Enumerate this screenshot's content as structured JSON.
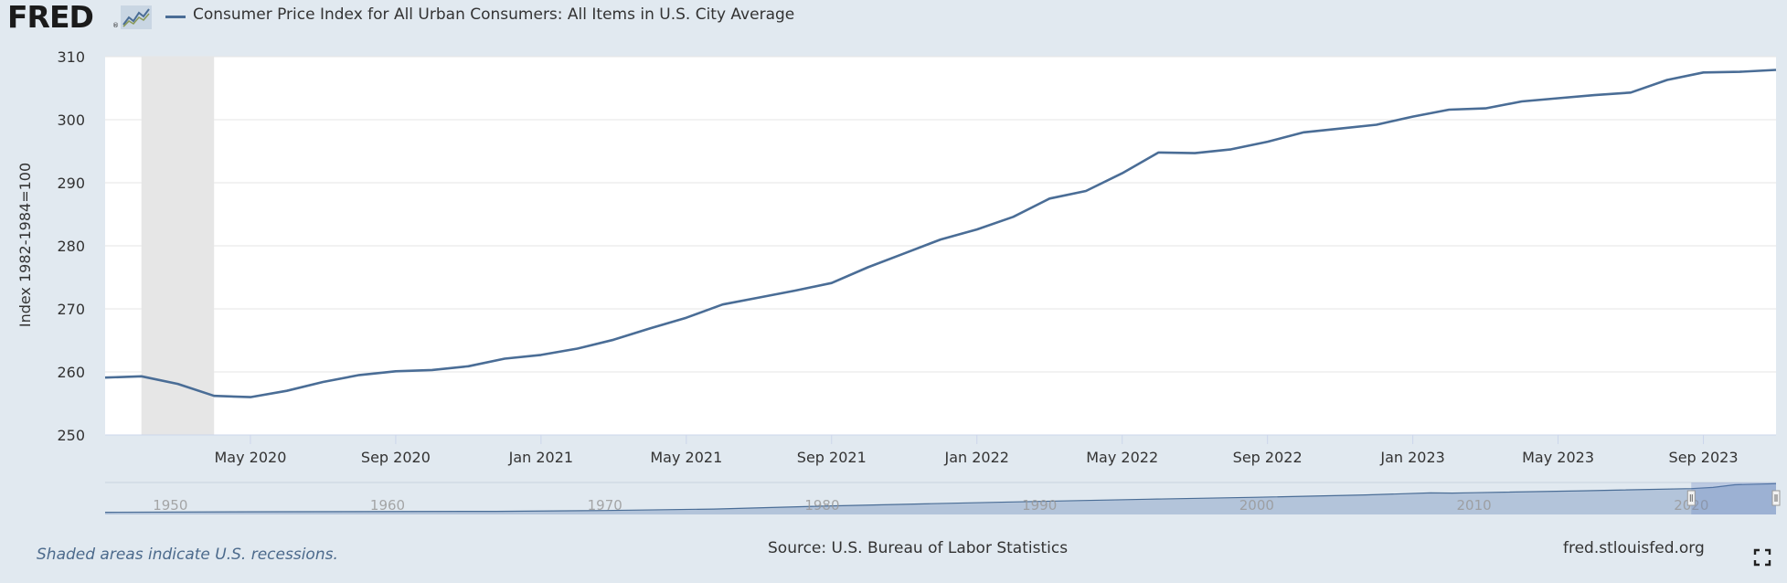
{
  "header": {
    "logo_text": "FRED",
    "logo_mark": "®",
    "logo_icon": "chart-line-icon",
    "series_title": "Consumer Price Index for All Urban Consumers: All Items in U.S. City Average"
  },
  "colors": {
    "series": "#4a6d96",
    "recession": "#e6e6e6",
    "plot_bg": "#ffffff",
    "page_bg": "#e1e9f0",
    "grid": "#e6e6e6",
    "navigator_fill": "#8ea6c8"
  },
  "chart_data": {
    "type": "line",
    "title": "Consumer Price Index for All Urban Consumers: All Items in U.S. City Average",
    "xlabel": "",
    "ylabel": "Index 1982-1984=100",
    "ylim": [
      250,
      310
    ],
    "yticks": [
      250,
      260,
      270,
      280,
      290,
      300,
      310
    ],
    "grid": true,
    "x_start": "Jan 2020",
    "x_end": "Nov 2023",
    "xticks": [
      {
        "index": 4,
        "label": "May 2020"
      },
      {
        "index": 8,
        "label": "Sep 2020"
      },
      {
        "index": 12,
        "label": "Jan 2021"
      },
      {
        "index": 16,
        "label": "May 2021"
      },
      {
        "index": 20,
        "label": "Sep 2021"
      },
      {
        "index": 24,
        "label": "Jan 2022"
      },
      {
        "index": 28,
        "label": "May 2022"
      },
      {
        "index": 32,
        "label": "Sep 2022"
      },
      {
        "index": 36,
        "label": "Jan 2023"
      },
      {
        "index": 40,
        "label": "May 2023"
      },
      {
        "index": 44,
        "label": "Sep 2023"
      }
    ],
    "recession": {
      "start_index": 1,
      "end_index": 3
    },
    "series": [
      {
        "name": "Consumer Price Index for All Urban Consumers: All Items in U.S. City Average",
        "values": [
          259.1,
          259.3,
          258.1,
          256.2,
          256.0,
          257.0,
          258.4,
          259.5,
          260.1,
          260.3,
          260.9,
          262.1,
          262.7,
          263.7,
          265.1,
          266.9,
          268.6,
          270.7,
          271.8,
          272.9,
          274.1,
          276.6,
          278.8,
          281.0,
          282.6,
          284.6,
          287.5,
          288.7,
          291.5,
          294.8,
          294.7,
          295.3,
          296.5,
          298.0,
          298.6,
          299.2,
          300.5,
          301.6,
          301.8,
          302.9,
          303.4,
          303.9,
          304.3,
          306.3,
          307.5,
          307.6,
          307.9
        ]
      }
    ],
    "navigator": {
      "labels": [
        "1950",
        "1960",
        "1970",
        "1980",
        "1990",
        "2000",
        "2010",
        "2020"
      ],
      "range_start": 1947,
      "range_end": 2023.9,
      "selected_start": 2020,
      "selected_end": 2023.9,
      "series_points": [
        [
          1947,
          22
        ],
        [
          1955,
          27
        ],
        [
          1965,
          31
        ],
        [
          1970,
          39
        ],
        [
          1975,
          54
        ],
        [
          1980,
          83
        ],
        [
          1985,
          108
        ],
        [
          1990,
          131
        ],
        [
          1995,
          153
        ],
        [
          2000,
          172
        ],
        [
          2005,
          196
        ],
        [
          2008,
          216
        ],
        [
          2009,
          214
        ],
        [
          2010,
          218
        ],
        [
          2015,
          237
        ],
        [
          2020,
          259
        ],
        [
          2021,
          271
        ],
        [
          2022,
          297
        ],
        [
          2023.9,
          308
        ]
      ]
    }
  },
  "footer": {
    "recession_note": "Shaded areas indicate U.S. recessions.",
    "source": "Source: U.S. Bureau of Labor Statistics",
    "url": "fred.stlouisfed.org",
    "fullscreen_icon": "fullscreen-icon"
  }
}
